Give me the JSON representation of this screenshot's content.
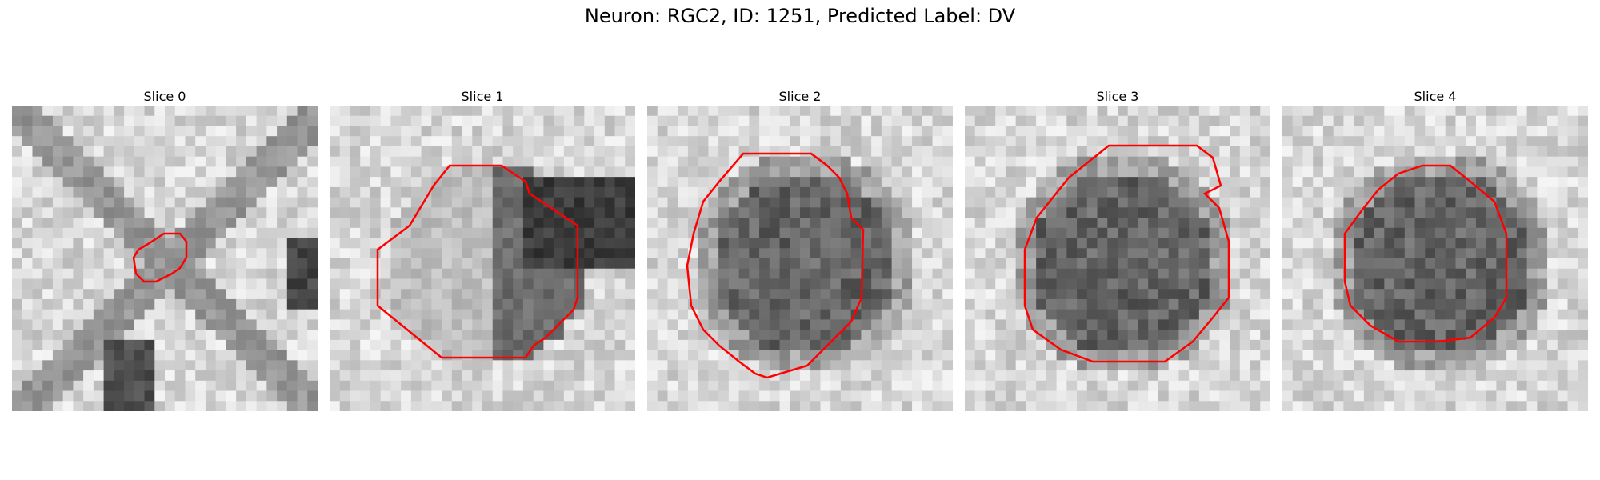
{
  "figure": {
    "title": "Neuron: RGC2, ID: 1251, Predicted Label: DV"
  },
  "slices": [
    {
      "title": "Slice 0"
    },
    {
      "title": "Slice 1"
    },
    {
      "title": "Slice 2"
    },
    {
      "title": "Slice 3"
    },
    {
      "title": "Slice 4"
    }
  ],
  "colors": {
    "contour": "#ff0000",
    "colormap": "gray"
  }
}
